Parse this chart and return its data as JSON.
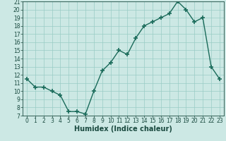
{
  "x": [
    0,
    1,
    2,
    3,
    4,
    5,
    6,
    7,
    8,
    9,
    10,
    11,
    12,
    13,
    14,
    15,
    16,
    17,
    18,
    19,
    20,
    21,
    22,
    23
  ],
  "y": [
    11.5,
    10.5,
    10.5,
    10.0,
    9.5,
    7.5,
    7.5,
    7.2,
    10.0,
    12.5,
    13.5,
    15.0,
    14.5,
    16.5,
    18.0,
    18.5,
    19.0,
    19.5,
    21.0,
    20.0,
    18.5,
    19.0,
    13.0,
    11.5
  ],
  "xlabel": "Humidex (Indice chaleur)",
  "xlim": [
    -0.5,
    23.5
  ],
  "ylim": [
    7,
    21
  ],
  "yticks": [
    7,
    8,
    9,
    10,
    11,
    12,
    13,
    14,
    15,
    16,
    17,
    18,
    19,
    20,
    21
  ],
  "xticks": [
    0,
    1,
    2,
    3,
    4,
    5,
    6,
    7,
    8,
    9,
    10,
    11,
    12,
    13,
    14,
    15,
    16,
    17,
    18,
    19,
    20,
    21,
    22,
    23
  ],
  "line_color": "#1a6b5a",
  "marker": "+",
  "marker_size": 4,
  "marker_lw": 1.2,
  "line_width": 1.0,
  "bg_color": "#cce8e4",
  "grid_color": "#99ccc5",
  "text_color": "#1a4a40",
  "xlabel_fontsize": 7,
  "tick_fontsize": 5.5
}
